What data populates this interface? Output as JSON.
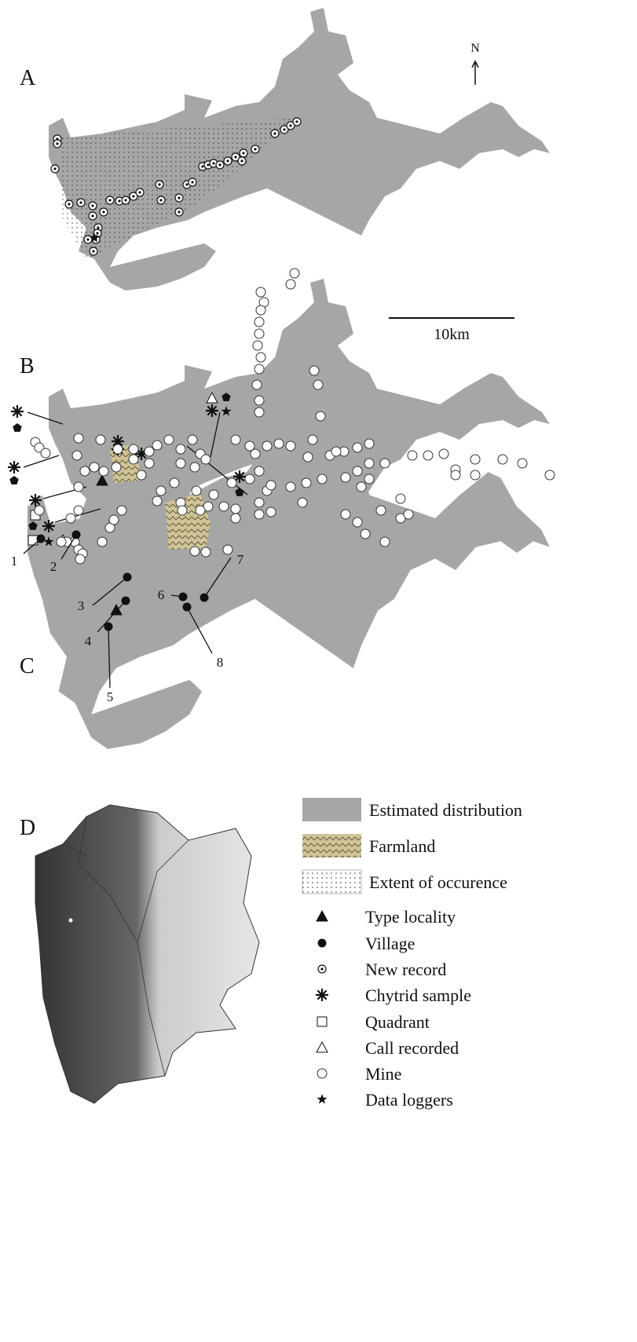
{
  "panels": [
    {
      "label": "A"
    },
    {
      "label": "B"
    },
    {
      "label": "C"
    },
    {
      "label": "D"
    }
  ],
  "north": "N",
  "scale_bar": "10km",
  "villages": [
    "1",
    "2",
    "3",
    "4",
    "5",
    "6",
    "7",
    "8"
  ],
  "legend": [
    "Estimated distribution",
    "Farmland",
    "Extent of occurence",
    "Type locality",
    "Village",
    "New record",
    "Chytrid sample",
    "Quadrant",
    "Call recorded",
    "Mine",
    "Data loggers"
  ]
}
